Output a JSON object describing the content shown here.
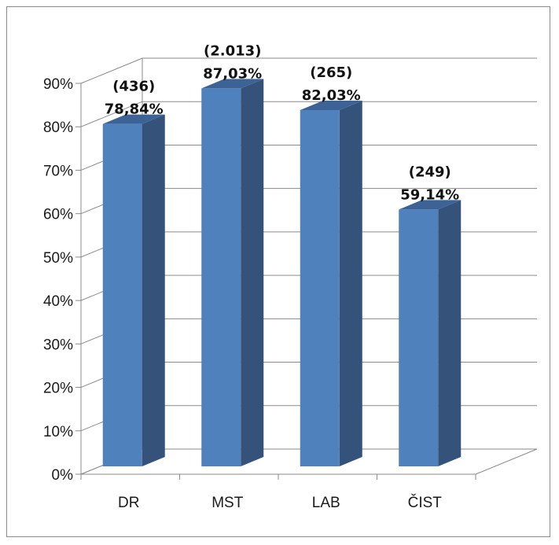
{
  "chart_data": {
    "type": "bar",
    "title": "",
    "xlabel": "",
    "ylabel": "",
    "categories": [
      "DR",
      "MST",
      "LAB",
      "ČIST"
    ],
    "values": [
      78.84,
      87.03,
      82.03,
      59.14
    ],
    "counts": [
      "(436)",
      "(2.013)",
      "(265)",
      "(249)"
    ],
    "value_labels": [
      "78,84%",
      "87,03%",
      "82,03%",
      "59,14%"
    ],
    "ylim": [
      0,
      90
    ],
    "ytick_step": 10,
    "ytick_labels": [
      "0%",
      "10%",
      "20%",
      "30%",
      "40%",
      "50%",
      "60%",
      "70%",
      "80%",
      "90%"
    ],
    "grid": true,
    "legend": "none",
    "three_d": true,
    "colors": {
      "bar_front": "#4f81bd",
      "bar_side": "#34527a",
      "bar_top": "#3d6396",
      "grid": "#8a8a8a",
      "axis": "#8a8a8a"
    }
  }
}
